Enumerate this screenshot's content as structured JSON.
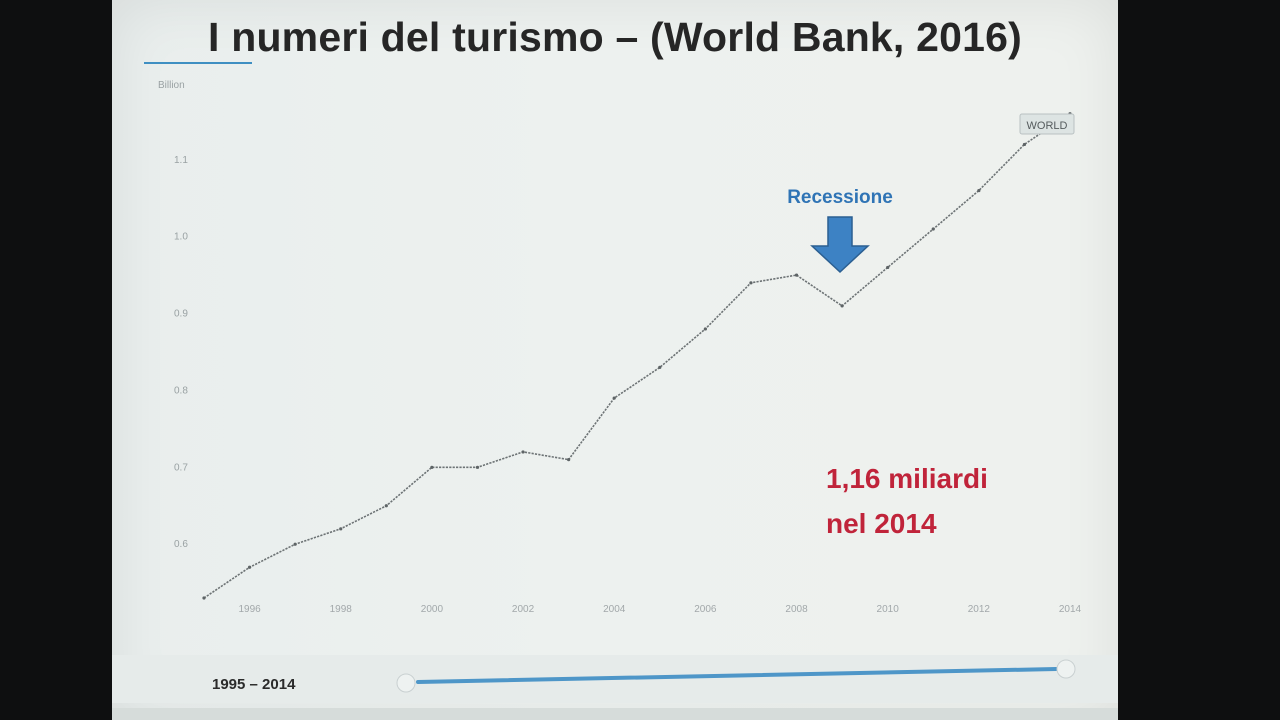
{
  "slide": {
    "title": "I numeri del turismo – (World Bank, 2016)",
    "annotation_recession": "Recessione",
    "annotation_value_line1": "1,16 miliardi",
    "annotation_value_line2": "nel 2014",
    "range_label": "1995 – 2014",
    "colors": {
      "accent_blue": "#2f74b5",
      "highlight_red": "#c0243a",
      "line": "#6d7375"
    }
  },
  "chart_data": {
    "type": "line",
    "ylabel": "Billion",
    "x": [
      1995,
      1996,
      1997,
      1998,
      1999,
      2000,
      2001,
      2002,
      2003,
      2004,
      2005,
      2006,
      2007,
      2008,
      2009,
      2010,
      2011,
      2012,
      2013,
      2014
    ],
    "series": [
      {
        "name": "WORLD",
        "values": [
          0.53,
          0.57,
          0.6,
          0.62,
          0.65,
          0.7,
          0.7,
          0.72,
          0.71,
          0.79,
          0.83,
          0.88,
          0.94,
          0.95,
          0.91,
          0.96,
          1.01,
          1.06,
          1.12,
          1.16
        ]
      }
    ],
    "xticks": [
      1996,
      1998,
      2000,
      2002,
      2004,
      2006,
      2008,
      2010,
      2012,
      2014
    ],
    "xtick_labels": [
      "1996",
      "1998",
      "2000",
      "2002",
      "2004",
      "2006",
      "2008",
      "2010",
      "2012",
      "2014"
    ],
    "yticks": [
      0.6,
      0.7,
      0.8,
      0.9,
      1.0,
      1.1
    ],
    "ytick_labels": [
      "0.6",
      "0.7",
      "0.8",
      "0.9",
      "1.0",
      "1.1"
    ],
    "xlim": [
      1995,
      2014
    ],
    "ylim": [
      0.53,
      1.17
    ],
    "grid": false,
    "range_slider": {
      "start": 1995,
      "end": 2014
    }
  }
}
